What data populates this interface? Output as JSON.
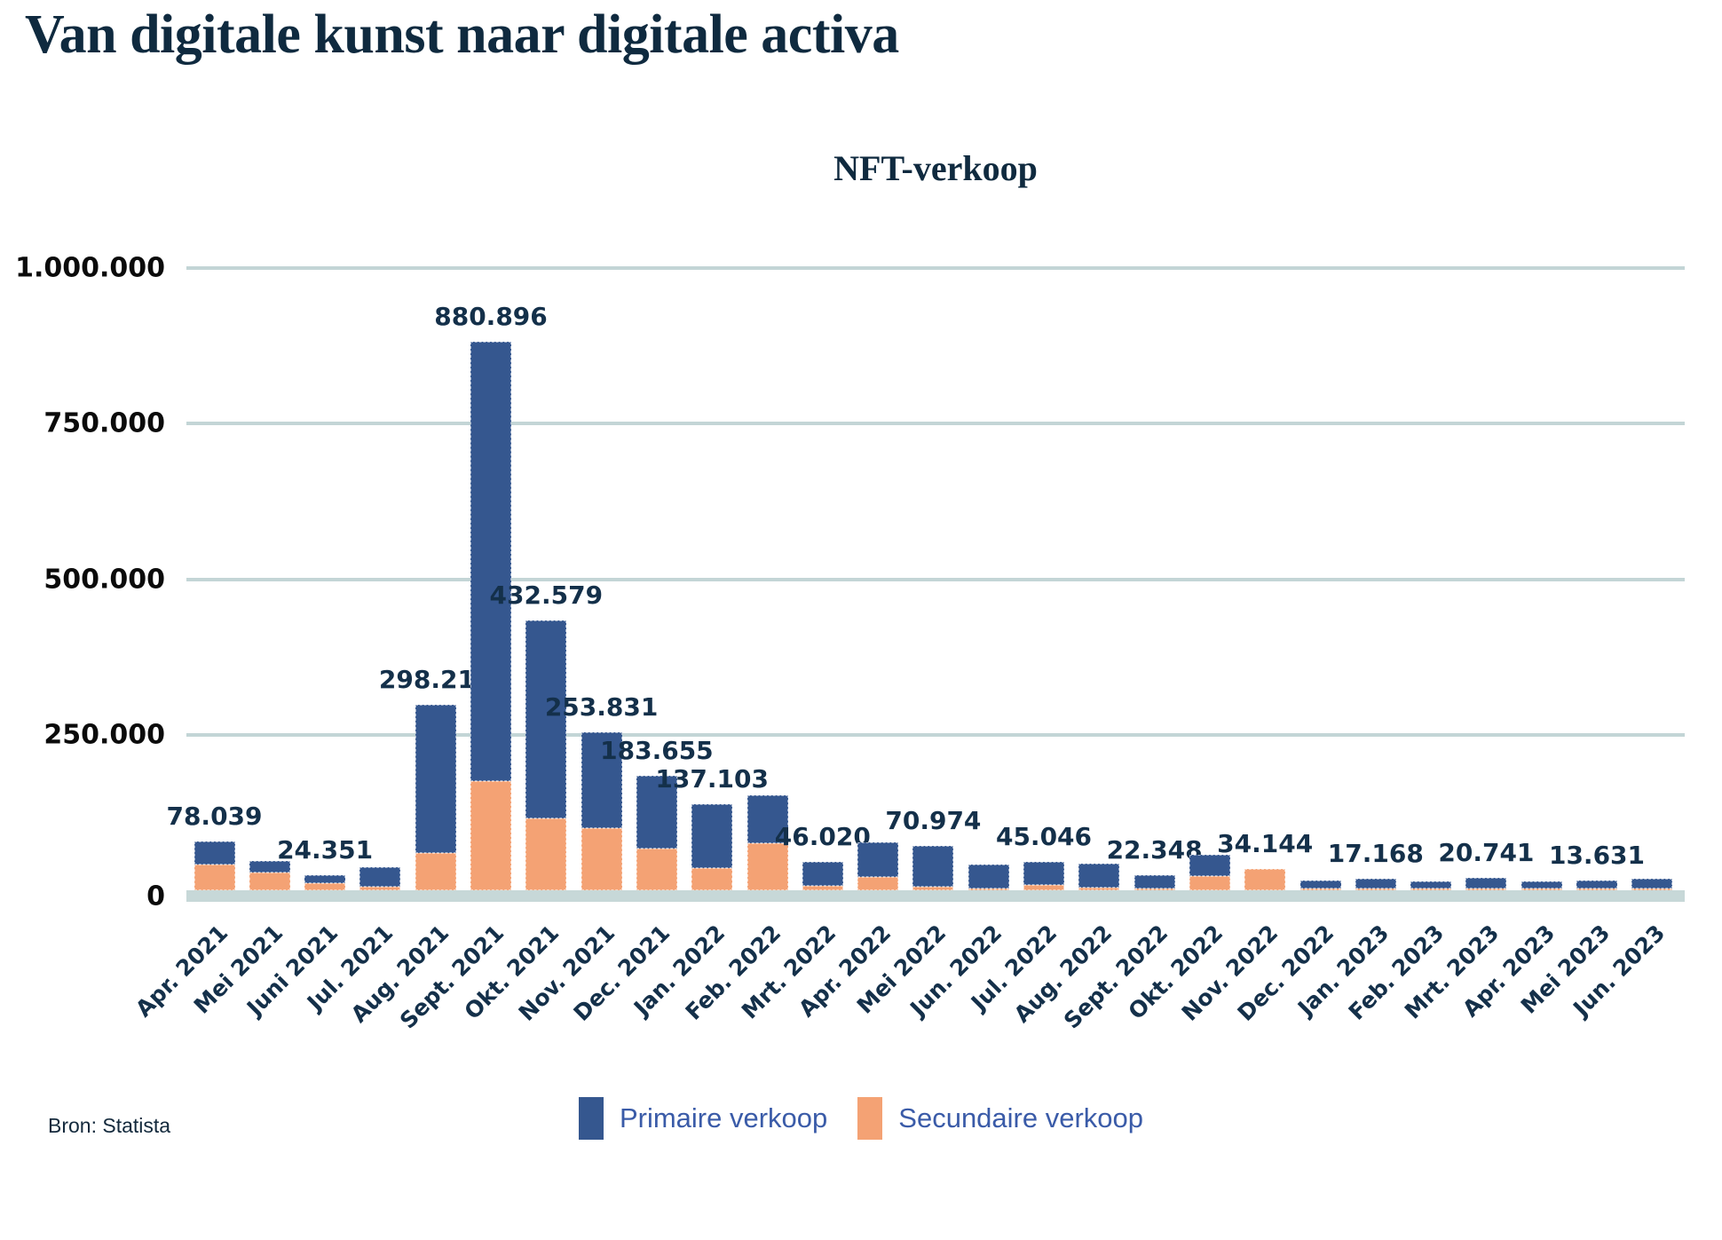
{
  "page_title": "Van digitale kunst naar digitale activa",
  "source_note": "Bron: Statista",
  "colors": {
    "primary_blue": "#35578f",
    "secondary_orange": "#f4a274",
    "grid": "#c3d5d6",
    "axis_band": "#c7d8d8",
    "title_navy": "#0f2a3f",
    "label_navy": "#14304a",
    "legend_text_blue": "#3a5ba8"
  },
  "legend": {
    "items": [
      {
        "label": "Primaire verkoop",
        "color": "#35578f"
      },
      {
        "label": "Secundaire verkoop",
        "color": "#f4a274"
      }
    ]
  },
  "chart_data": {
    "type": "bar",
    "stacked": true,
    "title": "NFT-verkoop",
    "grid": true,
    "legend_position": "bottom",
    "ylim": [
      0,
      1000000
    ],
    "y_ticks": [
      {
        "label": "1.000.000",
        "value": 1000000
      },
      {
        "label": "750.000",
        "value": 750000
      },
      {
        "label": "500.000",
        "value": 500000
      },
      {
        "label": "250.000",
        "value": 250000
      },
      {
        "label": "0",
        "value": 0
      }
    ],
    "categories": [
      "Apr. 2021",
      "Mei 2021",
      "Juni 2021",
      "Jul. 2021",
      "Aug. 2021",
      "Sept. 2021",
      "Okt. 2021",
      "Nov. 2021",
      "Dec. 2021",
      "Jan. 2022",
      "Feb. 2022",
      "Mrt. 2022",
      "Apr. 2022",
      "Mei 2022",
      "Jun. 2022",
      "Jul. 2022",
      "Aug. 2022",
      "Sept. 2022",
      "Okt. 2022",
      "Nov. 2022",
      "Dec. 2022",
      "Jan. 2023",
      "Feb. 2023",
      "Mrt. 2023",
      "Apr. 2023",
      "Mei 2023",
      "Jun. 2023"
    ],
    "series": [
      {
        "name": "Primaire verkoop",
        "color": "#35578f",
        "values": [
          37039,
          19000,
          13351,
          31000,
          238210,
          705896,
          317579,
          153831,
          116655,
          102103,
          77000,
          39020,
          55000,
          64974,
          38000,
          37046,
          38000,
          20848,
          34000,
          0,
          13000,
          16168,
          11500,
          17741,
          12000,
          13131,
          15000
        ]
      },
      {
        "name": "Secundaire verkoop",
        "color": "#f4a274",
        "values": [
          41000,
          28000,
          11000,
          6000,
          60000,
          175000,
          115000,
          100000,
          67000,
          35000,
          75000,
          7000,
          21000,
          6000,
          3000,
          8000,
          4000,
          1500,
          23000,
          34144,
          1000,
          1000,
          500,
          3000,
          500,
          500,
          500
        ]
      }
    ],
    "total_labels": [
      "78.039",
      "",
      "24.351",
      "",
      "298.210",
      "880.896",
      "432.579",
      "253.831",
      "183.655",
      "137.103",
      "",
      "46.020",
      "",
      "70.974",
      "",
      "45.046",
      "",
      "22.348",
      "",
      "34.144",
      "",
      "17.168",
      "",
      "20.741",
      "",
      "13.631",
      ""
    ]
  }
}
